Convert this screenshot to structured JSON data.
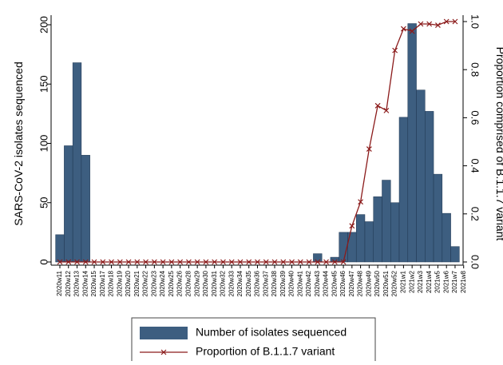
{
  "chart_data": {
    "type": "bar",
    "y_label": "SARS-CoV-2 isolates sequenced",
    "y2_label": "Proportion comprised of B.1.1.7 variant",
    "categories": [
      "2020w11",
      "2020w12",
      "2020w13",
      "2020w14",
      "2020w15",
      "2020w17",
      "2020w18",
      "2020w19",
      "2020w20",
      "2020w21",
      "2020w22",
      "2020w23",
      "2020w24",
      "2020w25",
      "2020w26",
      "2020w28",
      "2020w29",
      "2020w30",
      "2020w31",
      "2020w32",
      "2020w33",
      "2020w34",
      "2020w35",
      "2020w36",
      "2020w37",
      "2020w38",
      "2020w39",
      "2020w40",
      "2020w41",
      "2020w42",
      "2020w43",
      "2020w44",
      "2020w45",
      "2020w46",
      "2020w47",
      "2020w48",
      "2020w49",
      "2020w50",
      "2020w51",
      "2020w52",
      "2021w1",
      "2021w2",
      "2021w3",
      "2021w4",
      "2021w5",
      "2021w6",
      "2021w7",
      "2021w8"
    ],
    "series": [
      {
        "name": "Number of isolates sequenced",
        "type": "bar",
        "color": "#3d5e80",
        "values": [
          23,
          98,
          168,
          90,
          0,
          0,
          0,
          0,
          0,
          0,
          0,
          0,
          0,
          0,
          0,
          0,
          0,
          0,
          0,
          0,
          0,
          0,
          0,
          0,
          0,
          0,
          0,
          0,
          0,
          0,
          7,
          0,
          4,
          25,
          25,
          40,
          34,
          55,
          69,
          50,
          122,
          201,
          145,
          127,
          74,
          41,
          13,
          0
        ]
      },
      {
        "name": "Proportion of B.1.1.7 variant",
        "type": "line",
        "axis": "y2",
        "color": "#8b1a1a",
        "values": [
          0,
          0,
          0,
          0,
          0,
          0,
          0,
          0,
          0,
          0,
          0,
          0,
          0,
          0,
          0,
          0,
          0,
          0,
          0,
          0,
          0,
          0,
          0,
          0,
          0,
          0,
          0,
          0,
          0,
          0,
          0,
          0,
          0,
          0,
          0.15,
          0.25,
          0.47,
          0.65,
          0.63,
          0.88,
          0.97,
          0.96,
          0.99,
          0.99,
          0.985,
          1.0,
          1.0,
          null
        ]
      }
    ],
    "ylim": [
      0,
      200
    ],
    "yticks": [
      0,
      50,
      100,
      150,
      200
    ],
    "y2lim": [
      0,
      1
    ],
    "y2ticks": [
      {
        "value": 0,
        "label": "0.0"
      },
      0.2,
      0.4,
      0.6,
      0.8,
      {
        "value": 1,
        "label": "1.0"
      }
    ]
  }
}
